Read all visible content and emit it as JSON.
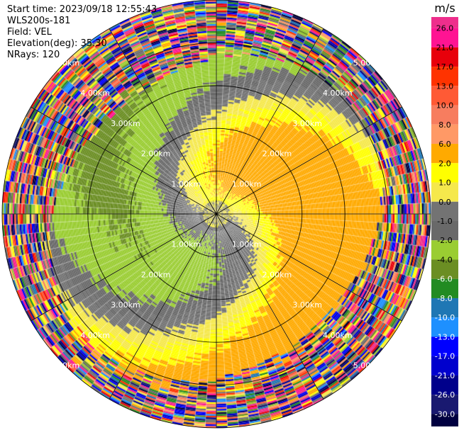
{
  "info": {
    "start_time": "Start time: 2023/09/18 12:55:43",
    "instrument": "WLS200s-181",
    "field": "Field: VEL",
    "elevation": "Elevation(deg): 35.30",
    "nrays": "NRays: 120"
  },
  "colorbar": {
    "unit": "m/s",
    "ticks": [
      "26.0",
      "21.0",
      "17.0",
      "13.0",
      "10.0",
      "8.0",
      "6.0",
      "2.0",
      "1.0",
      "0.0",
      "-1.0",
      "-2.0",
      "-4.0",
      "-6.0",
      "-8.0",
      "-10.0",
      "-13.0",
      "-17.0",
      "-21.0",
      "-26.0",
      "-30.0"
    ],
    "colors": [
      "#ee2e8c",
      "#ff1493",
      "#e8000b",
      "#ff3300",
      "#ff5a35",
      "#f77d5f",
      "#ff9966",
      "#ffaa00",
      "#ffff00",
      "#f5e84c",
      "#737373",
      "#696969",
      "#9acd32",
      "#6b8e23",
      "#228b22",
      "#1f77b4",
      "#1e90ff",
      "#0000ff",
      "#0000cd",
      "#00008b",
      "#191970",
      "#000040"
    ]
  },
  "chart_data": {
    "type": "ppi",
    "field": "VEL",
    "units": "m/s",
    "nrays": 120,
    "elevation_deg": 35.3,
    "range_rings_km": [
      1.0,
      2.0,
      3.0,
      4.0,
      5.0
    ],
    "range_labels": [
      "1.00km",
      "2.00km",
      "3.00km",
      "4.00km",
      "5.00km"
    ],
    "max_range_km": 5.0,
    "spokes_deg": [
      0,
      30,
      60,
      90,
      120,
      150,
      180,
      210,
      240,
      270,
      300,
      330
    ],
    "velocity_pattern": {
      "near_field_km": [
        0.0,
        1.0
      ],
      "near_field_values": [
        -1.0,
        1.0
      ],
      "north_max": 4.5,
      "south_min": -4.0,
      "noise_beyond_km": 3.8
    }
  }
}
